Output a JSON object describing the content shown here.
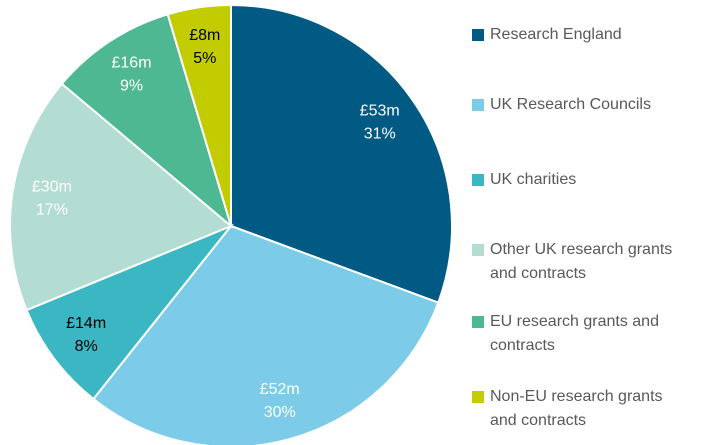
{
  "chart_data": {
    "type": "pie",
    "categories": [
      "Research England",
      "UK Research Councils",
      "UK charities",
      "Other UK research grants and contracts",
      "EU research grants and contracts",
      "Non-EU research grants and contracts"
    ],
    "values": [
      53,
      52,
      14,
      30,
      16,
      8
    ],
    "value_labels": [
      "£53m",
      "£52m",
      "£14m",
      "£30m",
      "£16m",
      "£8m"
    ],
    "percentages": [
      31,
      30,
      8,
      17,
      9,
      5
    ],
    "percentage_labels": [
      "31%",
      "30%",
      "8%",
      "17%",
      "9%",
      "5%"
    ],
    "colors": [
      "#005a83",
      "#7ccbe8",
      "#3ab7c3",
      "#b3dcd3",
      "#4db892",
      "#c2cc00"
    ],
    "label_colors": [
      "#ffffff",
      "#ffffff",
      "#000000",
      "#ffffff",
      "#ffffff",
      "#000000"
    ],
    "legend": "right"
  }
}
